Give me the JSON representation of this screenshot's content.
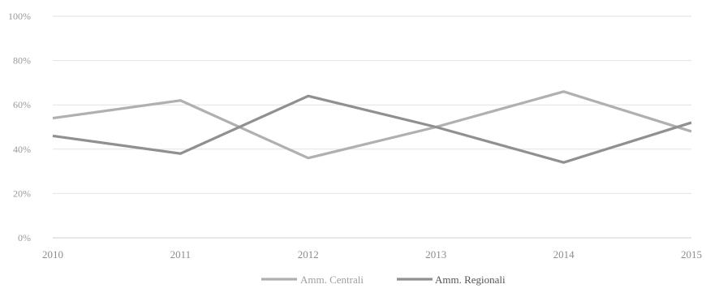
{
  "chart_data": {
    "type": "line",
    "title": "",
    "xlabel": "",
    "ylabel": "",
    "x": [
      "2010",
      "2011",
      "2012",
      "2013",
      "2014",
      "2015"
    ],
    "ylim": [
      0,
      100
    ],
    "yticks": [
      "0%",
      "20%",
      "40%",
      "60%",
      "80%",
      "100%"
    ],
    "grid": true,
    "legend_position": "bottom",
    "series": [
      {
        "name": "Amm. Centrali",
        "color": "#b0b0b0",
        "values": [
          54,
          62,
          36,
          50,
          66,
          48
        ]
      },
      {
        "name": "Amm. Regionali",
        "color": "#909090",
        "values": [
          46,
          38,
          64,
          50,
          34,
          52
        ]
      }
    ]
  }
}
